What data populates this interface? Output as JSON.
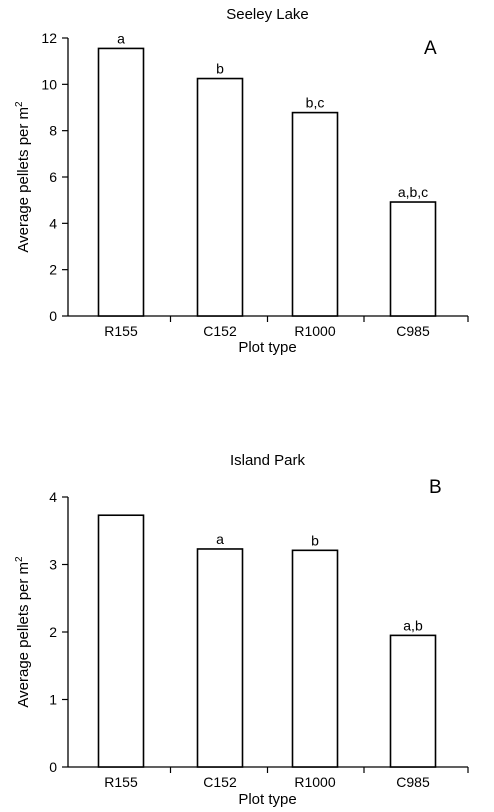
{
  "chart_data": [
    {
      "type": "bar",
      "title": "Seeley Lake",
      "panel": "A",
      "categories": [
        "R155",
        "C152",
        "R1000",
        "C985"
      ],
      "values": [
        11.55,
        10.25,
        8.78,
        4.92
      ],
      "bar_labels": [
        "a",
        "b",
        "b,c",
        "a,b,c"
      ],
      "xlabel": "Plot type",
      "ylabel_main": "Average pellets per m",
      "ylabel_sup": "2",
      "ylim": [
        0,
        12
      ],
      "yticks": [
        "0",
        "2",
        "4",
        "6",
        "8",
        "10",
        "12"
      ],
      "grid": false,
      "colors": {
        "bar_fill": "#ffffff",
        "bar_stroke": "#000000"
      }
    },
    {
      "type": "bar",
      "title": "Island Park",
      "panel": "B",
      "categories": [
        "R155",
        "C152",
        "R1000",
        "C985"
      ],
      "values": [
        3.73,
        3.23,
        3.21,
        1.95
      ],
      "bar_labels": [
        "",
        "a",
        "b",
        "a,b"
      ],
      "xlabel": "Plot type",
      "ylabel_main": "Average pellets per m",
      "ylabel_sup": "2",
      "ylim": [
        0,
        4
      ],
      "yticks": [
        "0",
        "1",
        "2",
        "3",
        "4"
      ],
      "grid": false,
      "colors": {
        "bar_fill": "#ffffff",
        "bar_stroke": "#000000"
      }
    }
  ]
}
